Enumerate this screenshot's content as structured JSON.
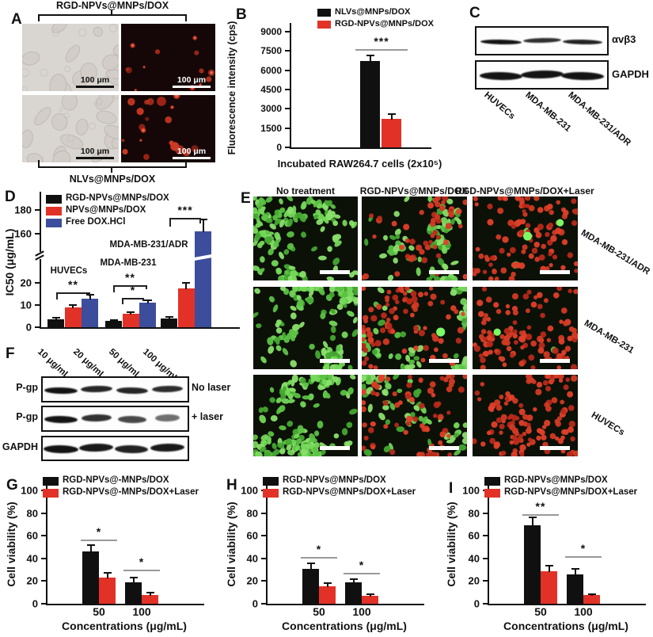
{
  "colors": {
    "black": "#101010",
    "red": "#e23228",
    "blue": "#3c4e9b",
    "green_cell": "#5fc94a",
    "red_cell": "#d63423"
  },
  "letters": {
    "A": "A",
    "B": "B",
    "C": "C",
    "D": "D",
    "E": "E",
    "F": "F",
    "G": "G",
    "H": "H",
    "I": "I"
  },
  "panelA": {
    "top_group_label": "RGD-NPVs@MNPs/DOX",
    "bottom_group_label": "NLVs@MNPs/DOX",
    "scale_bar_label": "100 μm",
    "images": [
      {
        "type": "bf",
        "bg": "#d9d5d1",
        "blobs": 13
      },
      {
        "type": "fl",
        "bg": "#150707",
        "red": 13,
        "rmax": 4.5
      },
      {
        "type": "bf",
        "bg": "#d9d5d1",
        "blobs": 15
      },
      {
        "type": "fl",
        "bg": "#150707",
        "red": 20,
        "rmax": 6
      }
    ]
  },
  "panelC": {
    "band_labels": [
      "αvβ3",
      "GAPDH"
    ],
    "lane_labels": [
      "HUVECs",
      "MDA-MB-231",
      "MDA-MB-231/ADR"
    ],
    "rows": [
      {
        "intensities": [
          1,
          0.78,
          0.88
        ],
        "height": 6
      },
      {
        "intensities": [
          1,
          1,
          1
        ],
        "height": 10
      }
    ]
  },
  "panelE": {
    "col_headers": [
      "No treatment",
      "RGD-NPVs@MNPs/DOX",
      "RGD-NPVs@MNPs/DOX+Laser"
    ],
    "row_labels": [
      "MDA-MB-231/ADR",
      "MDA-MB-231",
      "HUVECs"
    ],
    "cells": [
      [
        {
          "green": 150,
          "red": 0,
          "bright": 0
        },
        {
          "green": 85,
          "red": 50,
          "bright": 0
        },
        {
          "green": 2,
          "red": 100,
          "bright": 2
        }
      ],
      [
        {
          "green": 160,
          "red": 0,
          "bright": 0
        },
        {
          "green": 75,
          "red": 85,
          "bright": 1
        },
        {
          "green": 1,
          "red": 115,
          "bright": 1
        }
      ],
      [
        {
          "green": 170,
          "red": 0,
          "bright": 0
        },
        {
          "green": 65,
          "red": 75,
          "bright": 0
        },
        {
          "green": 0,
          "red": 125,
          "bright": 0
        }
      ]
    ]
  },
  "panelF": {
    "lane_labels": [
      "10 μg/mL",
      "20 μg/mL",
      "50 μg/mL",
      "100 μg/mL"
    ],
    "rows": [
      {
        "left_label": "P-gp",
        "right_label": "No laser",
        "intensities": [
          1,
          0.85,
          0.85,
          0.8
        ],
        "height": 8
      },
      {
        "left_label": "P-gp",
        "right_label": "+ laser",
        "intensities": [
          1,
          0.75,
          0.58,
          0.28
        ],
        "height": 9
      },
      {
        "left_label": "GAPDH",
        "right_label": "",
        "intensities": [
          1,
          0.95,
          0.88,
          0.95
        ],
        "height": 10
      }
    ]
  },
  "chart_data": [
    {
      "panel": "B",
      "type": "bar",
      "title": "",
      "ylabel": "Fluorescence intensity (cps)",
      "xlabel": "Incubated RAW264.7 cells (2x10⁵)",
      "ylim": [
        0,
        9300
      ],
      "yticks": [
        0,
        1500,
        3000,
        4500,
        6000,
        7500,
        9000
      ],
      "categories": [
        "Incubated RAW264.7 cells"
      ],
      "series": [
        {
          "name": "NLVs@MNPs/DOX",
          "color": "black",
          "values": [
            6700
          ],
          "errors": [
            450
          ]
        },
        {
          "name": "RGD-NPVs@MNPs/DOX",
          "color": "red",
          "values": [
            2200
          ],
          "errors": [
            380
          ]
        }
      ],
      "sig": [
        {
          "compares": "NLVs vs RGD-NPVs",
          "label": "***"
        }
      ],
      "legend_position": "top",
      "grid": false
    },
    {
      "panel": "D",
      "type": "bar",
      "ylabel": "IC50 (μg/mL)",
      "axis_break": {
        "lower_range": [
          0,
          30
        ],
        "upper_range": [
          150,
          190
        ]
      },
      "yticks_lower": [
        0,
        10,
        20
      ],
      "yticks_upper": [
        160,
        180
      ],
      "categories": [
        "HUVECs",
        "MDA-MB-231",
        "MDA-MB-231/ADR"
      ],
      "series": [
        {
          "name": "RGD-NPVs@MNPs/DOX",
          "color": "black",
          "values": [
            3.5,
            2.8,
            4.0
          ],
          "errors": [
            1.0,
            0.6,
            0.8
          ]
        },
        {
          "name": "NPVs@MNPs/DOX",
          "color": "red",
          "values": [
            9.0,
            6.0,
            17.5
          ],
          "errors": [
            1.2,
            1.0,
            2.5
          ]
        },
        {
          "name": "Free DOX.HCl",
          "color": "blue",
          "values": [
            13.0,
            11.2,
            162.0
          ],
          "errors": [
            1.6,
            0.9,
            10.0
          ]
        }
      ],
      "sig": [
        {
          "compares": "HUVECs black vs blue",
          "label": "**"
        },
        {
          "compares": "MDA-MB-231 black vs blue",
          "label": "**"
        },
        {
          "compares": "MDA-MB-231 red vs blue",
          "label": "*"
        },
        {
          "compares": "MDA-MB-231/ADR red vs blue",
          "label": "***"
        }
      ],
      "legend_position": "top-left",
      "grid": false
    },
    {
      "panel": "G",
      "type": "bar",
      "ylabel": "Cell viability (%)",
      "xlabel": "Concentrations (μg/mL)",
      "ylim": [
        0,
        105
      ],
      "yticks": [
        0,
        20,
        40,
        60,
        80,
        100
      ],
      "categories": [
        "50",
        "100"
      ],
      "series": [
        {
          "name": "RGD-NPVs@-MNPs/DOX",
          "color": "black",
          "values": [
            46,
            19
          ],
          "errors": [
            6,
            4
          ]
        },
        {
          "name": "RGD-NPVs@-MNPs/DOX+Laser",
          "color": "red",
          "values": [
            23,
            8
          ],
          "errors": [
            4,
            2
          ]
        }
      ],
      "sig": [
        {
          "compares": "50",
          "label": "*"
        },
        {
          "compares": "100",
          "label": "*"
        }
      ],
      "legend_position": "top-left",
      "grid": false
    },
    {
      "panel": "H",
      "type": "bar",
      "ylabel": "Cell viability (%)",
      "xlabel": "Concentrations (μg/mL)",
      "ylim": [
        0,
        105
      ],
      "yticks": [
        0,
        20,
        40,
        60,
        80,
        100
      ],
      "categories": [
        "50",
        "100"
      ],
      "series": [
        {
          "name": "RGD-NPVs@MNPs/DOX",
          "color": "black",
          "values": [
            31,
            19
          ],
          "errors": [
            5,
            2.5
          ]
        },
        {
          "name": "RGD-NPVs@MNPs/DOX+Laser",
          "color": "red",
          "values": [
            15.5,
            7
          ],
          "errors": [
            3,
            1.5
          ]
        }
      ],
      "sig": [
        {
          "compares": "50",
          "label": "*"
        },
        {
          "compares": "100",
          "label": "*"
        }
      ],
      "legend_position": "top-left",
      "grid": false
    },
    {
      "panel": "I",
      "type": "bar",
      "ylabel": "Cell viability (%)",
      "xlabel": "Concentrations (μg/mL)",
      "ylim": [
        0,
        105
      ],
      "yticks": [
        0,
        20,
        40,
        60,
        80,
        100
      ],
      "categories": [
        "50",
        "100"
      ],
      "series": [
        {
          "name": "RGD-NPVs@MNPs/DOX",
          "color": "black",
          "values": [
            69,
            26
          ],
          "errors": [
            7,
            4.5
          ]
        },
        {
          "name": "RGD-NPVs@MNPs/DOX+Laser",
          "color": "red",
          "values": [
            29,
            7.5
          ],
          "errors": [
            4.5,
            1
          ]
        }
      ],
      "sig": [
        {
          "compares": "50",
          "label": "**"
        },
        {
          "compares": "100",
          "label": "*"
        }
      ],
      "legend_position": "top-left",
      "grid": false
    }
  ]
}
